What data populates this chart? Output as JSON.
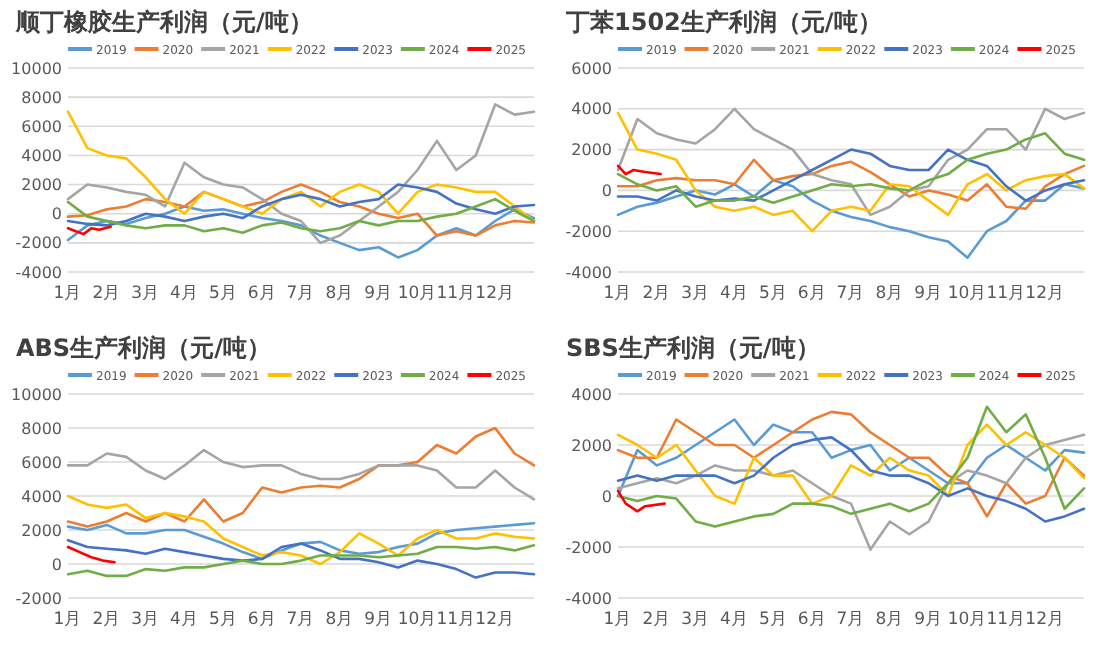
{
  "chart_data": [
    {
      "type": "line",
      "title": "顺丁橡胶生产利润（元/吨）",
      "legend": "top",
      "grid": "y",
      "xlim": [
        1,
        13
      ],
      "ylim": [
        -4000,
        10000
      ],
      "yticks": [
        -4000,
        -2000,
        0,
        2000,
        4000,
        6000,
        8000,
        10000
      ],
      "xticks": [
        {
          "value": 1,
          "label": "1月"
        },
        {
          "value": 2,
          "label": "2月"
        },
        {
          "value": 3,
          "label": "3月"
        },
        {
          "value": 4,
          "label": "4月"
        },
        {
          "value": 5,
          "label": "5月"
        },
        {
          "value": 6,
          "label": "6月"
        },
        {
          "value": 7,
          "label": "7月"
        },
        {
          "value": 8,
          "label": "8月"
        },
        {
          "value": 9,
          "label": "9月"
        },
        {
          "value": 10,
          "label": "10月"
        },
        {
          "value": 11,
          "label": "11月"
        },
        {
          "value": 12,
          "label": "12月"
        }
      ],
      "x": [
        1,
        1.5,
        2,
        2.5,
        3,
        3.5,
        4,
        4.5,
        5,
        5.5,
        6,
        6.5,
        7,
        7.5,
        8,
        8.5,
        9,
        9.5,
        10,
        10.5,
        11,
        11.5,
        12,
        12.5,
        13
      ],
      "series": [
        {
          "name": "2019",
          "color": "#5b9bd5",
          "values": [
            -1800,
            -800,
            -500,
            -700,
            -300,
            0,
            500,
            200,
            300,
            0,
            -300,
            -500,
            -800,
            -1500,
            -2000,
            -2500,
            -2300,
            -3000,
            -2500,
            -1500,
            -1000,
            -1500,
            -500,
            300,
            -300
          ]
        },
        {
          "name": "2020",
          "color": "#ed7d31",
          "values": [
            -200,
            -100,
            300,
            500,
            1000,
            800,
            500,
            1500,
            1000,
            500,
            800,
            1500,
            2000,
            1500,
            800,
            500,
            0,
            -300,
            0,
            -1500,
            -1200,
            -1500,
            -800,
            -500,
            -600
          ]
        },
        {
          "name": "2021",
          "color": "#a5a5a5",
          "values": [
            1000,
            2000,
            1800,
            1500,
            1300,
            500,
            3500,
            2500,
            2000,
            1800,
            1000,
            0,
            -500,
            -2000,
            -1500,
            -500,
            500,
            1500,
            3000,
            5000,
            3000,
            4000,
            7500,
            6800,
            7000
          ]
        },
        {
          "name": "2022",
          "color": "#ffc000",
          "values": [
            7000,
            4500,
            4000,
            3800,
            2500,
            1000,
            0,
            1500,
            1000,
            500,
            0,
            1000,
            1500,
            500,
            1500,
            2000,
            1500,
            0,
            1500,
            2000,
            1800,
            1500,
            1500,
            500,
            -500
          ]
        },
        {
          "name": "2023",
          "color": "#4472c4",
          "values": [
            -500,
            -700,
            -800,
            -500,
            0,
            -200,
            -500,
            -200,
            0,
            -300,
            500,
            1000,
            1300,
            1000,
            500,
            800,
            1000,
            2000,
            1800,
            1500,
            700,
            300,
            0,
            500,
            600
          ]
        },
        {
          "name": "2024",
          "color": "#70ad47",
          "values": [
            800,
            -200,
            -500,
            -800,
            -1000,
            -800,
            -800,
            -1200,
            -1000,
            -1300,
            -800,
            -600,
            -1000,
            -1200,
            -1000,
            -500,
            -800,
            -500,
            -500,
            -200,
            0,
            500,
            1000,
            200,
            -500
          ]
        },
        {
          "name": "2025",
          "color": "#ff0000",
          "x": [
            1,
            1.2,
            1.4,
            1.6,
            1.8,
            2.1
          ],
          "values": [
            -1000,
            -1200,
            -1400,
            -1000,
            -1100,
            -900
          ]
        }
      ]
    },
    {
      "type": "line",
      "title": "丁苯1502生产利润（元/吨）",
      "legend": "top",
      "grid": "y",
      "xlim": [
        1,
        13
      ],
      "ylim": [
        -4000,
        6000
      ],
      "yticks": [
        -4000,
        -2000,
        0,
        2000,
        4000,
        6000
      ],
      "xticks": [
        {
          "value": 1,
          "label": "1月"
        },
        {
          "value": 2,
          "label": "2月"
        },
        {
          "value": 3,
          "label": "3月"
        },
        {
          "value": 4,
          "label": "4月"
        },
        {
          "value": 5,
          "label": "5月"
        },
        {
          "value": 6,
          "label": "6月"
        },
        {
          "value": 7,
          "label": "7月"
        },
        {
          "value": 8,
          "label": "8月"
        },
        {
          "value": 9,
          "label": "9月"
        },
        {
          "value": 10,
          "label": "10月"
        },
        {
          "value": 11,
          "label": "11月"
        },
        {
          "value": 12,
          "label": "12月"
        }
      ],
      "x": [
        1,
        1.5,
        2,
        2.5,
        3,
        3.5,
        4,
        4.5,
        5,
        5.5,
        6,
        6.5,
        7,
        7.5,
        8,
        8.5,
        9,
        9.5,
        10,
        10.5,
        11,
        11.5,
        12,
        12.5,
        13
      ],
      "series": [
        {
          "name": "2019",
          "color": "#5b9bd5",
          "values": [
            -1200,
            -800,
            -600,
            -300,
            0,
            -200,
            300,
            -300,
            500,
            200,
            -500,
            -1000,
            -1300,
            -1500,
            -1800,
            -2000,
            -2300,
            -2500,
            -3300,
            -2000,
            -1500,
            -500,
            -500,
            300,
            100
          ]
        },
        {
          "name": "2020",
          "color": "#ed7d31",
          "values": [
            200,
            200,
            500,
            600,
            500,
            500,
            300,
            1500,
            500,
            700,
            800,
            1200,
            1400,
            900,
            300,
            -300,
            0,
            -200,
            -500,
            300,
            -800,
            -900,
            200,
            800,
            1200
          ]
        },
        {
          "name": "2021",
          "color": "#a5a5a5",
          "values": [
            1000,
            3500,
            2800,
            2500,
            2300,
            3000,
            4000,
            3000,
            2500,
            2000,
            800,
            500,
            300,
            -1200,
            -800,
            0,
            200,
            1500,
            2000,
            3000,
            3000,
            2000,
            4000,
            3500,
            3800
          ]
        },
        {
          "name": "2022",
          "color": "#ffc000",
          "values": [
            3800,
            2000,
            1800,
            1500,
            0,
            -800,
            -1000,
            -800,
            -1200,
            -1000,
            -2000,
            -1000,
            -800,
            -1000,
            300,
            200,
            -500,
            -1200,
            300,
            800,
            0,
            500,
            700,
            800,
            100
          ]
        },
        {
          "name": "2023",
          "color": "#4472c4",
          "values": [
            -300,
            -300,
            -500,
            0,
            -300,
            -500,
            -400,
            -500,
            0,
            500,
            1000,
            1500,
            2000,
            1800,
            1200,
            1000,
            1000,
            2000,
            1500,
            1200,
            200,
            -500,
            0,
            300,
            500
          ]
        },
        {
          "name": "2024",
          "color": "#70ad47",
          "values": [
            800,
            300,
            0,
            200,
            -800,
            -500,
            -500,
            -300,
            -600,
            -300,
            0,
            300,
            200,
            300,
            100,
            0,
            500,
            800,
            1500,
            1800,
            2000,
            2500,
            2800,
            1800,
            1500
          ]
        },
        {
          "name": "2025",
          "color": "#ff0000",
          "x": [
            1,
            1.2,
            1.4,
            1.7,
            2.1
          ],
          "values": [
            1200,
            800,
            1000,
            900,
            800
          ]
        }
      ]
    },
    {
      "type": "line",
      "title": "ABS生产利润（元/吨）",
      "legend": "top",
      "grid": "y",
      "xlim": [
        1,
        13
      ],
      "ylim": [
        -2000,
        10000
      ],
      "yticks": [
        -2000,
        0,
        2000,
        4000,
        6000,
        8000,
        10000
      ],
      "xticks": [
        {
          "value": 1,
          "label": "1月"
        },
        {
          "value": 2,
          "label": "2月"
        },
        {
          "value": 3,
          "label": "3月"
        },
        {
          "value": 4,
          "label": "4月"
        },
        {
          "value": 5,
          "label": "5月"
        },
        {
          "value": 6,
          "label": "6月"
        },
        {
          "value": 7,
          "label": "7月"
        },
        {
          "value": 8,
          "label": "8月"
        },
        {
          "value": 9,
          "label": "9月"
        },
        {
          "value": 10,
          "label": "10月"
        },
        {
          "value": 11,
          "label": "11月"
        },
        {
          "value": 12,
          "label": "12月"
        }
      ],
      "x": [
        1,
        1.5,
        2,
        2.5,
        3,
        3.5,
        4,
        4.5,
        5,
        5.5,
        6,
        6.5,
        7,
        7.5,
        8,
        8.5,
        9,
        9.5,
        10,
        10.5,
        11,
        11.5,
        12,
        12.5,
        13
      ],
      "series": [
        {
          "name": "2019",
          "color": "#5b9bd5",
          "values": [
            2200,
            2000,
            2300,
            1800,
            1800,
            2000,
            2000,
            1600,
            1200,
            700,
            300,
            800,
            1200,
            1300,
            800,
            600,
            700,
            1000,
            1200,
            1800,
            2000,
            2100,
            2200,
            2300,
            2400
          ]
        },
        {
          "name": "2020",
          "color": "#ed7d31",
          "values": [
            2500,
            2200,
            2500,
            3000,
            2500,
            3000,
            2500,
            3800,
            2500,
            3000,
            4500,
            4200,
            4500,
            4600,
            4500,
            5000,
            5800,
            5800,
            6000,
            7000,
            6500,
            7500,
            8000,
            6500,
            5800
          ]
        },
        {
          "name": "2021",
          "color": "#a5a5a5",
          "values": [
            5800,
            5800,
            6500,
            6300,
            5500,
            5000,
            5800,
            6700,
            6000,
            5700,
            5800,
            5800,
            5300,
            5000,
            5000,
            5300,
            5800,
            5800,
            5800,
            5500,
            4500,
            4500,
            5500,
            4500,
            3800
          ]
        },
        {
          "name": "2022",
          "color": "#ffc000",
          "values": [
            4000,
            3500,
            3300,
            3500,
            2700,
            3000,
            2800,
            2500,
            1500,
            1000,
            500,
            700,
            500,
            0,
            700,
            1800,
            1200,
            500,
            1500,
            2000,
            1500,
            1500,
            1800,
            1600,
            1500
          ]
        },
        {
          "name": "2023",
          "color": "#4472c4",
          "values": [
            1400,
            1000,
            900,
            800,
            600,
            900,
            700,
            500,
            300,
            200,
            300,
            1000,
            1200,
            800,
            300,
            300,
            100,
            -200,
            200,
            0,
            -300,
            -800,
            -500,
            -500,
            -600
          ]
        },
        {
          "name": "2024",
          "color": "#70ad47",
          "values": [
            -600,
            -400,
            -700,
            -700,
            -300,
            -400,
            -200,
            -200,
            0,
            200,
            0,
            0,
            200,
            500,
            500,
            500,
            400,
            500,
            600,
            1000,
            1000,
            900,
            1000,
            800,
            1100
          ]
        },
        {
          "name": "2025",
          "color": "#ff0000",
          "x": [
            1,
            1.3,
            1.6,
            1.9,
            2.2
          ],
          "values": [
            1000,
            700,
            400,
            200,
            100
          ]
        }
      ]
    },
    {
      "type": "line",
      "title": "SBS生产利润（元/吨）",
      "legend": "top",
      "grid": "y",
      "xlim": [
        1,
        13
      ],
      "ylim": [
        -4000,
        4000
      ],
      "yticks": [
        -4000,
        -2000,
        0,
        2000,
        4000
      ],
      "xticks": [
        {
          "value": 1,
          "label": "1月"
        },
        {
          "value": 2,
          "label": "2月"
        },
        {
          "value": 3,
          "label": "3月"
        },
        {
          "value": 4,
          "label": "4月"
        },
        {
          "value": 5,
          "label": "5月"
        },
        {
          "value": 6,
          "label": "6月"
        },
        {
          "value": 7,
          "label": "7月"
        },
        {
          "value": 8,
          "label": "8月"
        },
        {
          "value": 9,
          "label": "9月"
        },
        {
          "value": 10,
          "label": "10月"
        },
        {
          "value": 11,
          "label": "11月"
        },
        {
          "value": 12,
          "label": "12月"
        }
      ],
      "x": [
        1,
        1.5,
        2,
        2.5,
        3,
        3.5,
        4,
        4.5,
        5,
        5.5,
        6,
        6.5,
        7,
        7.5,
        8,
        8.5,
        9,
        9.5,
        10,
        10.5,
        11,
        11.5,
        12,
        12.5,
        13
      ],
      "series": [
        {
          "name": "2019",
          "color": "#5b9bd5",
          "values": [
            0,
            1800,
            1200,
            1500,
            2000,
            2500,
            3000,
            2000,
            2800,
            2500,
            2500,
            1500,
            1800,
            2000,
            1000,
            1500,
            1000,
            500,
            500,
            1500,
            2000,
            1500,
            1000,
            1800,
            1700
          ]
        },
        {
          "name": "2020",
          "color": "#ed7d31",
          "values": [
            1800,
            1500,
            1500,
            3000,
            2500,
            2000,
            2000,
            1500,
            2000,
            2500,
            3000,
            3300,
            3200,
            2500,
            2000,
            1500,
            1500,
            800,
            500,
            -800,
            500,
            -300,
            0,
            1500,
            800
          ]
        },
        {
          "name": "2021",
          "color": "#a5a5a5",
          "values": [
            300,
            500,
            700,
            500,
            800,
            1200,
            1000,
            1000,
            800,
            1000,
            500,
            0,
            -300,
            -2100,
            -1000,
            -1500,
            -1000,
            500,
            1000,
            800,
            500,
            1500,
            2000,
            2200,
            2400
          ]
        },
        {
          "name": "2022",
          "color": "#ffc000",
          "values": [
            2400,
            2000,
            1500,
            2000,
            1000,
            0,
            -300,
            1500,
            800,
            800,
            -300,
            0,
            1200,
            800,
            1500,
            1000,
            800,
            0,
            2000,
            2800,
            2000,
            2500,
            2000,
            1500,
            700
          ]
        },
        {
          "name": "2023",
          "color": "#4472c4",
          "values": [
            600,
            800,
            600,
            800,
            800,
            800,
            500,
            800,
            1500,
            2000,
            2200,
            2300,
            1800,
            1000,
            800,
            800,
            500,
            0,
            300,
            0,
            -200,
            -500,
            -1000,
            -800,
            -500
          ]
        },
        {
          "name": "2024",
          "color": "#70ad47",
          "values": [
            0,
            -200,
            0,
            -100,
            -1000,
            -1200,
            -1000,
            -800,
            -700,
            -300,
            -300,
            -400,
            -700,
            -500,
            -300,
            -600,
            -300,
            500,
            1500,
            3500,
            2500,
            3200,
            1500,
            -500,
            300
          ]
        },
        {
          "name": "2025",
          "color": "#ff0000",
          "x": [
            1,
            1.2,
            1.5,
            1.7,
            2.2
          ],
          "values": [
            200,
            -300,
            -600,
            -400,
            -300
          ]
        }
      ]
    }
  ]
}
